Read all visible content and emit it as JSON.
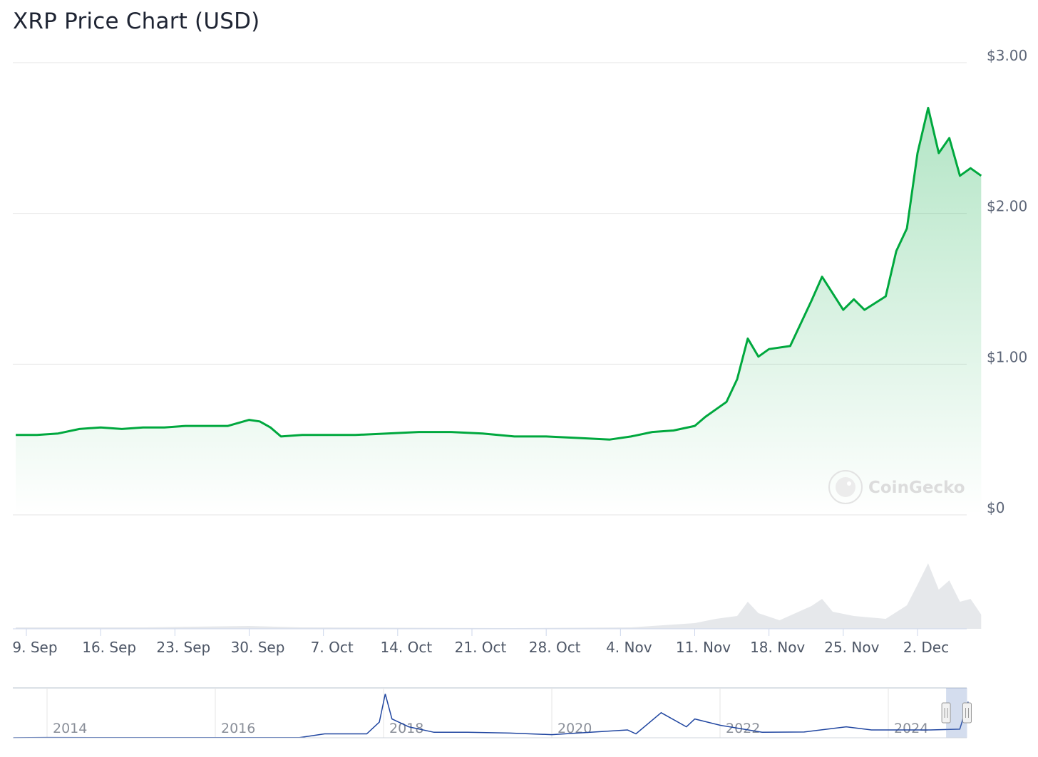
{
  "chart_data": {
    "type": "line",
    "title": "XRP Price Chart (USD)",
    "currency": "USD",
    "y_ticks": [
      "$3.00",
      "$2.00",
      "$1.00",
      "$0"
    ],
    "ylim": [
      0,
      3
    ],
    "x_ticks": [
      "9. Sep",
      "16. Sep",
      "23. Sep",
      "30. Sep",
      "7. Oct",
      "14. Oct",
      "21. Oct",
      "28. Oct",
      "4. Nov",
      "11. Nov",
      "18. Nov",
      "25. Nov",
      "2. Dec"
    ],
    "x_tick_dates": [
      "2024-09-09",
      "2024-09-16",
      "2024-09-23",
      "2024-09-30",
      "2024-10-07",
      "2024-10-14",
      "2024-10-21",
      "2024-10-28",
      "2024-11-04",
      "2024-11-11",
      "2024-11-18",
      "2024-11-25",
      "2024-12-02"
    ],
    "grid": true,
    "line_color": "#00a83e",
    "fill_color": "#00a83e",
    "series": [
      {
        "points": [
          [
            "2024-09-08",
            0.53
          ],
          [
            "2024-09-10",
            0.53
          ],
          [
            "2024-09-12",
            0.54
          ],
          [
            "2024-09-14",
            0.57
          ],
          [
            "2024-09-16",
            0.58
          ],
          [
            "2024-09-18",
            0.57
          ],
          [
            "2024-09-20",
            0.58
          ],
          [
            "2024-09-22",
            0.58
          ],
          [
            "2024-09-24",
            0.59
          ],
          [
            "2024-09-26",
            0.59
          ],
          [
            "2024-09-28",
            0.59
          ],
          [
            "2024-09-30",
            0.63
          ],
          [
            "2024-10-01",
            0.62
          ],
          [
            "2024-10-02",
            0.58
          ],
          [
            "2024-10-03",
            0.52
          ],
          [
            "2024-10-05",
            0.53
          ],
          [
            "2024-10-07",
            0.53
          ],
          [
            "2024-10-10",
            0.53
          ],
          [
            "2024-10-13",
            0.54
          ],
          [
            "2024-10-16",
            0.55
          ],
          [
            "2024-10-19",
            0.55
          ],
          [
            "2024-10-22",
            0.54
          ],
          [
            "2024-10-25",
            0.52
          ],
          [
            "2024-10-28",
            0.52
          ],
          [
            "2024-10-31",
            0.51
          ],
          [
            "2024-11-03",
            0.5
          ],
          [
            "2024-11-05",
            0.52
          ],
          [
            "2024-11-07",
            0.55
          ],
          [
            "2024-11-09",
            0.56
          ],
          [
            "2024-11-11",
            0.59
          ],
          [
            "2024-11-12",
            0.65
          ],
          [
            "2024-11-13",
            0.7
          ],
          [
            "2024-11-14",
            0.75
          ],
          [
            "2024-11-15",
            0.9
          ],
          [
            "2024-11-16",
            1.17
          ],
          [
            "2024-11-17",
            1.05
          ],
          [
            "2024-11-18",
            1.1
          ],
          [
            "2024-11-20",
            1.12
          ],
          [
            "2024-11-22",
            1.42
          ],
          [
            "2024-11-23",
            1.58
          ],
          [
            "2024-11-25",
            1.36
          ],
          [
            "2024-11-26",
            1.43
          ],
          [
            "2024-11-27",
            1.36
          ],
          [
            "2024-11-29",
            1.45
          ],
          [
            "2024-11-30",
            1.75
          ],
          [
            "2024-12-01",
            1.9
          ],
          [
            "2024-12-02",
            2.4
          ],
          [
            "2024-12-03",
            2.7
          ],
          [
            "2024-12-04",
            2.4
          ],
          [
            "2024-12-05",
            2.5
          ],
          [
            "2024-12-06",
            2.25
          ],
          [
            "2024-12-07",
            2.3
          ],
          [
            "2024-12-08",
            2.25
          ]
        ]
      }
    ],
    "volume": {
      "color": "#e6e8eb",
      "points": [
        [
          "2024-09-08",
          0.02
        ],
        [
          "2024-09-20",
          0.02
        ],
        [
          "2024-09-30",
          0.04
        ],
        [
          "2024-10-05",
          0.02
        ],
        [
          "2024-10-25",
          0.01
        ],
        [
          "2024-11-05",
          0.02
        ],
        [
          "2024-11-11",
          0.08
        ],
        [
          "2024-11-13",
          0.14
        ],
        [
          "2024-11-15",
          0.18
        ],
        [
          "2024-11-16",
          0.38
        ],
        [
          "2024-11-17",
          0.22
        ],
        [
          "2024-11-19",
          0.12
        ],
        [
          "2024-11-22",
          0.32
        ],
        [
          "2024-11-23",
          0.42
        ],
        [
          "2024-11-24",
          0.24
        ],
        [
          "2024-11-26",
          0.18
        ],
        [
          "2024-11-29",
          0.14
        ],
        [
          "2024-12-01",
          0.33
        ],
        [
          "2024-12-02",
          0.62
        ],
        [
          "2024-12-03",
          0.92
        ],
        [
          "2024-12-04",
          0.55
        ],
        [
          "2024-12-05",
          0.68
        ],
        [
          "2024-12-06",
          0.38
        ],
        [
          "2024-12-07",
          0.42
        ],
        [
          "2024-12-08",
          0.2
        ]
      ]
    },
    "navigator": {
      "x_ticks": [
        "2014",
        "2016",
        "2018",
        "2020",
        "2022",
        "2024"
      ],
      "ylim": [
        0,
        3
      ],
      "line_color": "#1f45a0",
      "points": [
        [
          2013.6,
          0.005
        ],
        [
          2014.0,
          0.02
        ],
        [
          2015.0,
          0.01
        ],
        [
          2016.0,
          0.007
        ],
        [
          2017.0,
          0.01
        ],
        [
          2017.3,
          0.25
        ],
        [
          2017.8,
          0.25
        ],
        [
          2017.95,
          1.0
        ],
        [
          2018.02,
          2.8
        ],
        [
          2018.1,
          1.2
        ],
        [
          2018.3,
          0.7
        ],
        [
          2018.6,
          0.35
        ],
        [
          2019.0,
          0.35
        ],
        [
          2019.5,
          0.3
        ],
        [
          2020.0,
          0.2
        ],
        [
          2020.9,
          0.5
        ],
        [
          2021.0,
          0.25
        ],
        [
          2021.3,
          1.6
        ],
        [
          2021.6,
          0.7
        ],
        [
          2021.7,
          1.2
        ],
        [
          2022.0,
          0.8
        ],
        [
          2022.5,
          0.35
        ],
        [
          2023.0,
          0.37
        ],
        [
          2023.5,
          0.7
        ],
        [
          2023.8,
          0.5
        ],
        [
          2024.5,
          0.5
        ],
        [
          2024.85,
          0.55
        ],
        [
          2024.95,
          2.3
        ]
      ],
      "selected_range": [
        "2024-09-08",
        "2024-12-08"
      ]
    },
    "watermark": "CoinGecko"
  }
}
